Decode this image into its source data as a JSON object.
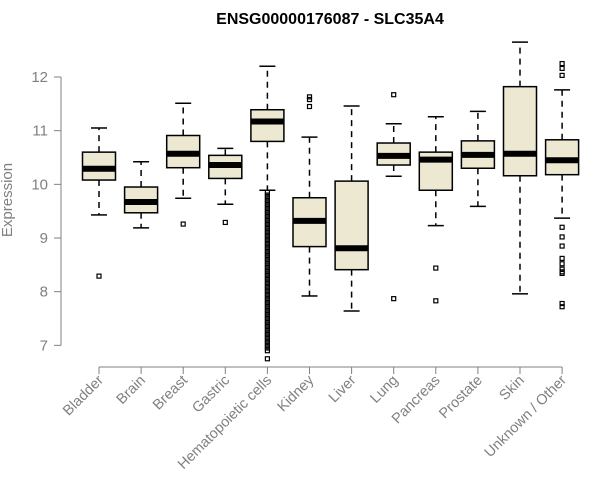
{
  "chart_data": {
    "type": "boxplot",
    "title": "ENSG00000176087 - SLC35A4",
    "xlabel": "",
    "ylabel": "Expression",
    "ylim": [
      6.75,
      12.75
    ],
    "yticks": [
      7,
      8,
      9,
      10,
      11,
      12
    ],
    "box_fill": "#ede8d1",
    "categories": [
      "Bladder",
      "Brain",
      "Breast",
      "Gastric",
      "Hematopoietic cells",
      "Kidney",
      "Liver",
      "Lung",
      "Pancreas",
      "Prostate",
      "Skin",
      "Unknown / Other"
    ],
    "boxes": [
      {
        "category": "Bladder",
        "whisker_low": 9.43,
        "q1": 10.08,
        "median": 10.29,
        "q3": 10.6,
        "whisker_high": 11.05,
        "outliers": [
          8.29
        ]
      },
      {
        "category": "Brain",
        "whisker_low": 9.19,
        "q1": 9.47,
        "median": 9.67,
        "q3": 9.95,
        "whisker_high": 10.42,
        "outliers": []
      },
      {
        "category": "Breast",
        "whisker_low": 9.74,
        "q1": 10.31,
        "median": 10.57,
        "q3": 10.91,
        "whisker_high": 11.51,
        "outliers": [
          9.26
        ]
      },
      {
        "category": "Gastric",
        "whisker_low": 9.63,
        "q1": 10.11,
        "median": 10.36,
        "q3": 10.54,
        "whisker_high": 10.67,
        "outliers": [
          9.29
        ]
      },
      {
        "category": "Hematopoietic cells",
        "whisker_low": 9.89,
        "q1": 10.8,
        "median": 11.17,
        "q3": 11.39,
        "whisker_high": 12.2,
        "outliers": [
          9.85,
          9.8,
          9.75,
          9.7,
          9.65,
          9.6,
          9.55,
          9.5,
          9.45,
          9.4,
          9.35,
          9.3,
          9.25,
          9.2,
          9.15,
          9.1,
          9.05,
          9.0,
          8.95,
          8.9,
          8.85,
          8.8,
          8.75,
          8.7,
          8.65,
          8.6,
          8.55,
          8.5,
          8.45,
          8.4,
          8.35,
          8.3,
          8.25,
          8.2,
          8.15,
          8.1,
          8.05,
          8.0,
          7.95,
          7.9,
          7.85,
          7.8,
          7.75,
          7.7,
          7.65,
          7.6,
          7.55,
          7.5,
          7.45,
          7.4,
          7.35,
          7.3,
          7.25,
          7.2,
          7.15,
          7.1,
          7.05,
          7.0,
          6.95,
          6.9,
          6.75
        ]
      },
      {
        "category": "Kidney",
        "whisker_low": 7.92,
        "q1": 8.84,
        "median": 9.32,
        "q3": 9.75,
        "whisker_high": 10.88,
        "outliers": [
          11.45,
          11.58,
          11.63
        ]
      },
      {
        "category": "Liver",
        "whisker_low": 7.64,
        "q1": 8.41,
        "median": 8.81,
        "q3": 10.06,
        "whisker_high": 11.46,
        "outliers": []
      },
      {
        "category": "Lung",
        "whisker_low": 10.15,
        "q1": 10.36,
        "median": 10.53,
        "q3": 10.77,
        "whisker_high": 11.13,
        "outliers": [
          7.87,
          11.67
        ]
      },
      {
        "category": "Pancreas",
        "whisker_low": 9.23,
        "q1": 9.89,
        "median": 10.46,
        "q3": 10.6,
        "whisker_high": 11.26,
        "outliers": [
          7.83,
          8.44
        ]
      },
      {
        "category": "Prostate",
        "whisker_low": 9.59,
        "q1": 10.3,
        "median": 10.55,
        "q3": 10.81,
        "whisker_high": 11.36,
        "outliers": []
      },
      {
        "category": "Skin",
        "whisker_low": 7.96,
        "q1": 10.16,
        "median": 10.57,
        "q3": 11.82,
        "whisker_high": 12.65,
        "outliers": []
      },
      {
        "category": "Unknown / Other",
        "whisker_low": 9.37,
        "q1": 10.18,
        "median": 10.45,
        "q3": 10.83,
        "whisker_high": 11.76,
        "outliers": [
          9.2,
          9.02,
          8.85,
          8.62,
          8.52,
          8.42,
          8.37,
          8.34,
          7.78,
          7.72,
          12.03,
          12.16,
          12.25
        ]
      }
    ]
  }
}
